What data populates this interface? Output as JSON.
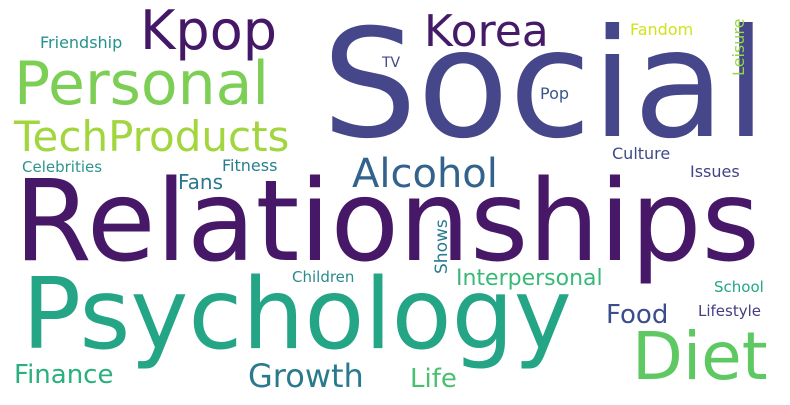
{
  "words": [
    {
      "text": "Social",
      "color": "#46468a"
    },
    {
      "text": "Relationships",
      "color": "#471768"
    },
    {
      "text": "Psychology",
      "color": "#24a585"
    },
    {
      "text": "Personal",
      "color": "#7ccf54"
    },
    {
      "text": "TechProducts",
      "color": "#a2d63e"
    },
    {
      "text": "Kpop",
      "color": "#451767"
    },
    {
      "text": "Korea",
      "color": "#451a69"
    },
    {
      "text": "Diet",
      "color": "#5ec962"
    },
    {
      "text": "Alcohol",
      "color": "#33638d"
    },
    {
      "text": "Growth",
      "color": "#2a7a8e"
    },
    {
      "text": "Finance",
      "color": "#2ab07f"
    },
    {
      "text": "Life",
      "color": "#48c16e"
    },
    {
      "text": "Food",
      "color": "#3b4d8a"
    },
    {
      "text": "Interpersonal",
      "color": "#38b977"
    },
    {
      "text": "Fans",
      "color": "#2a788e"
    },
    {
      "text": "Fitness",
      "color": "#277f8e"
    },
    {
      "text": "Celebrities",
      "color": "#2c948c"
    },
    {
      "text": "Friendship",
      "color": "#26918c"
    },
    {
      "text": "Fandom",
      "color": "#d2e21b"
    },
    {
      "text": "Leisure",
      "color": "#93d741"
    },
    {
      "text": "TV",
      "color": "#404788"
    },
    {
      "text": "Pop",
      "color": "#3a548c"
    },
    {
      "text": "Culture",
      "color": "#3e4a89"
    },
    {
      "text": "Issues",
      "color": "#414487"
    },
    {
      "text": "Shows",
      "color": "#2a7b8e"
    },
    {
      "text": "Children",
      "color": "#2b8b8c"
    },
    {
      "text": "School",
      "color": "#22a884"
    },
    {
      "text": "Lifestyle",
      "color": "#433d84"
    }
  ]
}
